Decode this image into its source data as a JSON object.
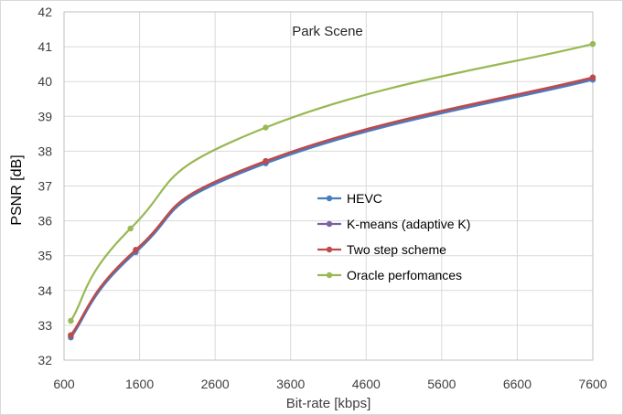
{
  "chart_data": {
    "type": "line",
    "title": "Park Scene",
    "xlabel": "Bit-rate [kbps]",
    "ylabel": "PSNR [dB]",
    "xlim": [
      600,
      7600
    ],
    "ylim": [
      32,
      42
    ],
    "xticks": [
      600,
      1600,
      2600,
      3600,
      4600,
      5600,
      6600,
      7600
    ],
    "yticks": [
      32,
      33,
      34,
      35,
      36,
      37,
      38,
      39,
      40,
      41,
      42
    ],
    "grid": true,
    "legend_position": "center-right",
    "series": [
      {
        "name": "HEVC",
        "color": "#4a7ebb",
        "x": [
          690,
          1550,
          3270,
          7600
        ],
        "y": [
          32.65,
          35.1,
          37.65,
          40.05
        ]
      },
      {
        "name": "K-means (adaptive K)",
        "color": "#7d60a0",
        "x": [
          690,
          1550,
          3270,
          7600
        ],
        "y": [
          32.7,
          35.15,
          37.7,
          40.1
        ]
      },
      {
        "name": "Two step scheme",
        "color": "#be4b48",
        "x": [
          690,
          1550,
          3270,
          7600
        ],
        "y": [
          32.72,
          35.17,
          37.72,
          40.12
        ]
      },
      {
        "name": "Oracle perfomances",
        "color": "#98b954",
        "x": [
          690,
          1480,
          3270,
          7600
        ],
        "y": [
          33.13,
          35.78,
          38.68,
          41.08
        ]
      }
    ]
  }
}
